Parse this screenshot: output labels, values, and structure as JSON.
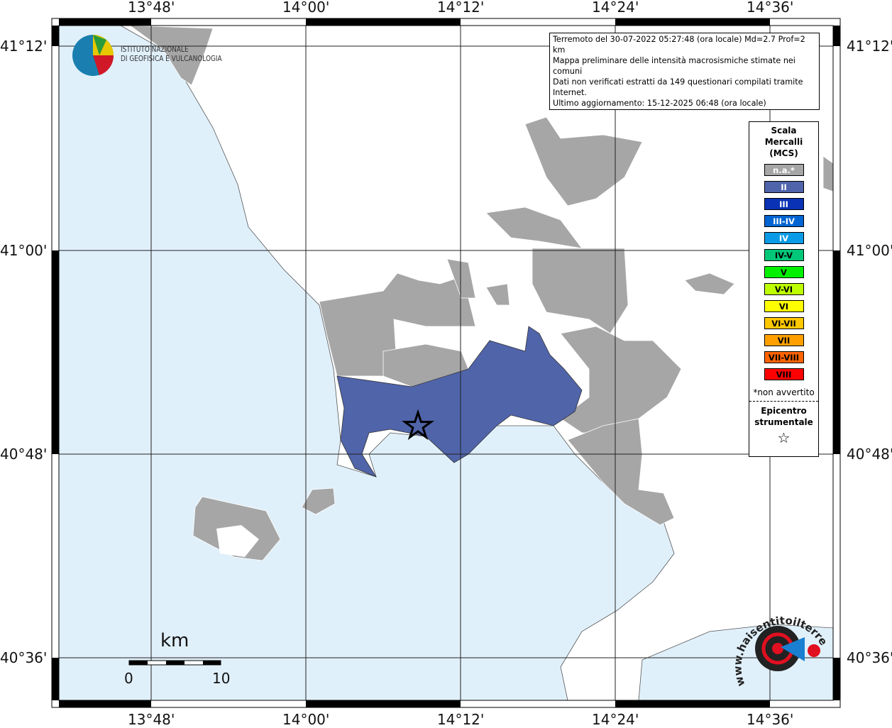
{
  "axes": {
    "top": [
      "13°48'",
      "14°00'",
      "14°12'",
      "14°24'",
      "14°36'"
    ],
    "bottom": [
      "13°48'",
      "14°00'",
      "14°12'",
      "14°24'",
      "14°36'"
    ],
    "left": [
      "41°12'",
      "41°00'",
      "40°48'",
      "40°36'"
    ],
    "right": [
      "41°12'",
      "41°00'",
      "40°48'",
      "40°36'"
    ]
  },
  "info": [
    "Terremoto del 30-07-2022 05:27:48 (ora locale) Md=2.7 Prof=2 km",
    "Mappa preliminare delle intensità macrosismiche stimate nei comuni",
    "Dati non verificati estratti da 149 questionari compilati tramite Internet.",
    "Ultimo aggiornamento: 15-12-2025 06:48 (ora locale)"
  ],
  "legend": {
    "title": [
      "Scala",
      "Mercalli",
      "(MCS)"
    ],
    "items": [
      {
        "label": "n.a.*",
        "color": "#a6a6a6",
        "text": "#fff"
      },
      {
        "label": "II",
        "color": "#5064aa",
        "text": "#fff"
      },
      {
        "label": "III",
        "color": "#0a32b4",
        "text": "#fff"
      },
      {
        "label": "III-IV",
        "color": "#0064d2",
        "text": "#fff"
      },
      {
        "label": "IV",
        "color": "#0a9be6",
        "text": "#fff"
      },
      {
        "label": "IV-V",
        "color": "#00c878",
        "text": "#000"
      },
      {
        "label": "V",
        "color": "#00f000",
        "text": "#000"
      },
      {
        "label": "V-VI",
        "color": "#beff00",
        "text": "#000"
      },
      {
        "label": "VI",
        "color": "#ffff00",
        "text": "#000"
      },
      {
        "label": "VI-VII",
        "color": "#ffc800",
        "text": "#000"
      },
      {
        "label": "VII",
        "color": "#ffa000",
        "text": "#000"
      },
      {
        "label": "VII-VIII",
        "color": "#ff6400",
        "text": "#000"
      },
      {
        "label": "VIII",
        "color": "#ff0000",
        "text": "#000"
      }
    ],
    "note": "*non avvertito",
    "epicentre": [
      "Epicentro",
      "strumentale"
    ],
    "star": "☆"
  },
  "scale": {
    "unit": "km",
    "min": "0",
    "max": "10"
  },
  "logo_ingv": [
    "ISTITUTO NAZIONALE",
    "DI GEOFISICA E VULCANOLOGIA"
  ],
  "logo_hst": "www.haisentitoilterremoto.it",
  "colors": {
    "sea": "#e0f0fb",
    "land": "#ffffff",
    "na": "#a6a6a6",
    "ii": "#5064aa"
  }
}
